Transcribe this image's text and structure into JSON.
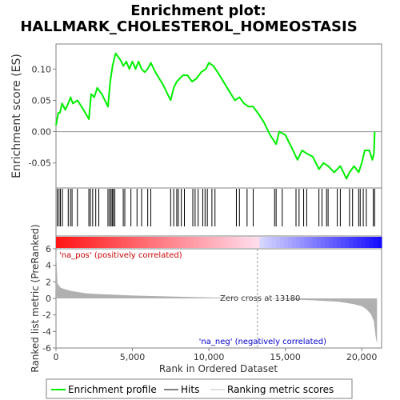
{
  "chart_data": {
    "type": "line",
    "title_line1": "Enrichment plot:",
    "title_line2": "HALLMARK_CHOLESTEROL_HOMEOSTASIS",
    "ylabel_top": "Enrichment score (ES)",
    "ylabel_bottom": "Ranked list metric (PreRanked)",
    "xlabel": "Rank in Ordered Dataset",
    "xlim": [
      0,
      21300
    ],
    "ylim_es": [
      -0.09,
      0.14
    ],
    "ylim_metric": [
      -6,
      6
    ],
    "es_yticks": [
      {
        "v": 0.1,
        "t": "0.10"
      },
      {
        "v": 0.05,
        "t": "0.05"
      },
      {
        "v": 0.0,
        "t": "0.00"
      },
      {
        "v": -0.05,
        "t": "-0.05"
      }
    ],
    "metric_yticks": [
      {
        "v": 6,
        "t": "6"
      },
      {
        "v": 4,
        "t": "4"
      },
      {
        "v": 2,
        "t": "2"
      },
      {
        "v": 0,
        "t": "0"
      },
      {
        "v": -2,
        "t": "-2"
      },
      {
        "v": -4,
        "t": "-4"
      },
      {
        "v": -6,
        "t": "-6"
      }
    ],
    "xticks": [
      {
        "v": 0,
        "t": "0"
      },
      {
        "v": 5000,
        "t": "5,000"
      },
      {
        "v": 10000,
        "t": "10,000"
      },
      {
        "v": 15000,
        "t": "15,000"
      },
      {
        "v": 20000,
        "t": "20,000"
      }
    ],
    "zero_cross_rank": 13180,
    "zero_cross_label": "Zero cross at 13180",
    "pos_label": "'na_pos' (positively correlated)",
    "neg_label": "'na_neg' (negatively correlated)",
    "enrichment_profile": {
      "x": [
        0,
        150,
        250,
        400,
        600,
        800,
        950,
        1100,
        1400,
        1800,
        2150,
        2300,
        2500,
        2700,
        3000,
        3400,
        3550,
        3700,
        3900,
        4200,
        4400,
        4600,
        4800,
        5000,
        5200,
        5400,
        5600,
        5800,
        6000,
        6200,
        6500,
        7000,
        7500,
        7700,
        7900,
        8100,
        8300,
        8600,
        8900,
        9200,
        9500,
        9800,
        10000,
        10300,
        10700,
        11200,
        11700,
        12000,
        12300,
        12600,
        12900,
        13200,
        13600,
        14000,
        14400,
        14600,
        15000,
        15400,
        15800,
        16100,
        16400,
        16800,
        17200,
        17500,
        17800,
        18200,
        18600,
        19000,
        19200,
        19500,
        19800,
        20000,
        20200,
        20500,
        20700,
        20800,
        20850
      ],
      "y": [
        0.01,
        0.03,
        0.03,
        0.045,
        0.035,
        0.045,
        0.055,
        0.045,
        0.05,
        0.035,
        0.02,
        0.06,
        0.055,
        0.07,
        0.06,
        0.04,
        0.08,
        0.105,
        0.125,
        0.115,
        0.105,
        0.112,
        0.1,
        0.112,
        0.1,
        0.112,
        0.1,
        0.095,
        0.1,
        0.11,
        0.095,
        0.075,
        0.05,
        0.07,
        0.08,
        0.085,
        0.09,
        0.09,
        0.08,
        0.085,
        0.095,
        0.1,
        0.11,
        0.105,
        0.09,
        0.07,
        0.05,
        0.055,
        0.045,
        0.04,
        0.04,
        0.03,
        0.015,
        -0.005,
        -0.02,
        0.0,
        -0.005,
        -0.025,
        -0.045,
        -0.03,
        -0.035,
        -0.04,
        -0.06,
        -0.05,
        -0.055,
        -0.065,
        -0.055,
        -0.075,
        -0.065,
        -0.055,
        -0.065,
        -0.05,
        -0.03,
        -0.03,
        -0.045,
        -0.035,
        0.0
      ]
    },
    "hit_ranks": [
      80,
      200,
      290,
      420,
      800,
      950,
      1050,
      1400,
      2150,
      2250,
      2400,
      2600,
      2800,
      3400,
      3500,
      3600,
      3680,
      3750,
      3850,
      4400,
      4500,
      4900,
      5300,
      5600,
      6000,
      6200,
      7500,
      7700,
      7900,
      8000,
      8200,
      8400,
      8950,
      9100,
      9300,
      9600,
      9750,
      9900,
      10200,
      10400,
      11800,
      12000,
      12500,
      12900,
      14300,
      14400,
      14800,
      15700,
      15900,
      16200,
      16400,
      17200,
      17400,
      17700,
      17800,
      18400,
      18600,
      19200,
      19400,
      19800,
      19900,
      20100,
      20300,
      20750,
      20850
    ],
    "metric_curve": {
      "x": [
        0,
        100,
        300,
        600,
        1000,
        2000,
        3000,
        5000,
        7000,
        9000,
        11000,
        13180,
        15000,
        17000,
        18500,
        19500,
        20000,
        20300,
        20600,
        20800,
        20900,
        21000
      ],
      "y": [
        6.0,
        1.8,
        1.3,
        1.1,
        0.9,
        0.6,
        0.5,
        0.35,
        0.25,
        0.15,
        0.08,
        0.0,
        -0.1,
        -0.25,
        -0.4,
        -0.7,
        -0.95,
        -1.3,
        -1.9,
        -2.8,
        -4.5,
        -5.5
      ]
    },
    "legend": [
      {
        "label": "Enrichment profile",
        "color": "#00ee00"
      },
      {
        "label": "Hits",
        "color": "#000000"
      },
      {
        "label": "Ranking metric scores",
        "color": "#c0c0c0"
      }
    ],
    "colors": {
      "profile": "#00ee00",
      "metric": "#b0b0b0",
      "pos": "#ff0000",
      "neg": "#0000ff",
      "frame": "#808080"
    }
  }
}
